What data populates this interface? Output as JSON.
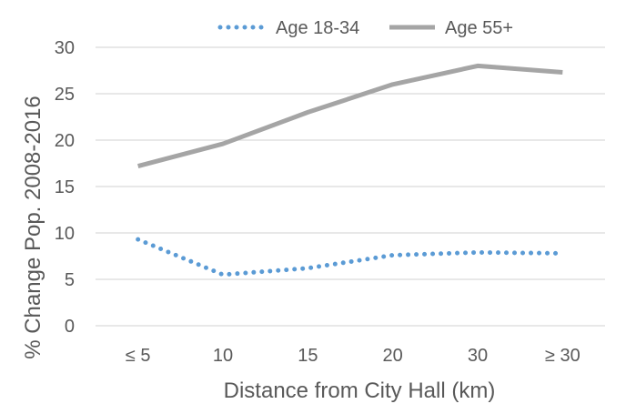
{
  "chart_data": {
    "type": "line",
    "title": "",
    "xlabel": "Distance from City Hall (km)",
    "ylabel": "% Change Pop. 2008-2016",
    "categories": [
      "≤ 5",
      "10",
      "15",
      "20",
      "30",
      "≥ 30"
    ],
    "ylim": [
      0,
      30
    ],
    "yticks": [
      0,
      5,
      10,
      15,
      20,
      25,
      30
    ],
    "grid": true,
    "legend_position": "top",
    "series": [
      {
        "name": "Age 18-34",
        "values": [
          9.3,
          5.5,
          6.2,
          7.6,
          7.9,
          7.8
        ],
        "color": "#5B9BD5",
        "style": "dotted"
      },
      {
        "name": "Age 55+",
        "values": [
          17.2,
          19.6,
          23.0,
          26.0,
          28.0,
          27.3
        ],
        "color": "#A5A5A5",
        "style": "solid"
      }
    ]
  }
}
